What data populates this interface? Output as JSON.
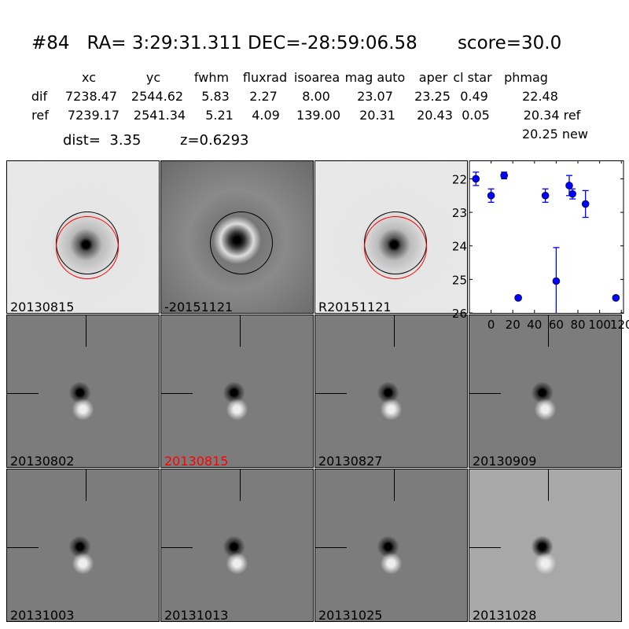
{
  "header": {
    "title": "#84   RA= 3:29:31.311 DEC=-28:59:06.58       score=30.0",
    "columns": [
      "xc",
      "yc",
      "fwhm",
      "fluxrad",
      "isoarea",
      "mag auto",
      "aper",
      "cl star",
      "phmag"
    ],
    "dif": {
      "label": "dif",
      "values": [
        "7238.47",
        "2544.62",
        "5.83",
        "2.27",
        "8.00",
        "23.07",
        "23.25",
        "0.49",
        "22.48"
      ]
    },
    "ref": {
      "label": "ref",
      "values": [
        "7239.17",
        "2541.34",
        "5.21",
        "4.09",
        "139.00",
        "20.31",
        "20.43",
        "0.05",
        "20.34 ref"
      ]
    },
    "new_phmag": "20.25 new",
    "dist": "dist=  3.35",
    "z": "z=0.6293"
  },
  "top_panels": [
    {
      "label": "20130815",
      "bg": "#e6e6e6",
      "circles": [
        "#000",
        "#f00"
      ]
    },
    {
      "label": "-20151121",
      "bg": "#8a8a8a",
      "circles": [
        "#000"
      ]
    },
    {
      "label": "R20151121",
      "bg": "#e6e6e6",
      "circles": [
        "#000",
        "#f00"
      ]
    }
  ],
  "stamps": [
    {
      "label": "20130802",
      "color": "#000"
    },
    {
      "label": "20130815",
      "color": "#f00"
    },
    {
      "label": "20130827",
      "color": "#000"
    },
    {
      "label": "20130909",
      "color": "#000"
    },
    {
      "label": "20131003",
      "color": "#000"
    },
    {
      "label": "20131013",
      "color": "#000"
    },
    {
      "label": "20131025",
      "color": "#000"
    },
    {
      "label": "20131028",
      "color": "#000"
    }
  ],
  "chart_data": {
    "type": "scatter",
    "marker_color": "#0000ff",
    "xlim": [
      -20,
      122
    ],
    "ylim": [
      26,
      21.45
    ],
    "y_inverted": true,
    "xticks": [
      "0",
      "20",
      "40",
      "60",
      "80",
      "100",
      "120"
    ],
    "yticks": [
      "22",
      "23",
      "24",
      "25",
      "26"
    ],
    "x": [
      -14,
      0,
      12,
      25,
      50,
      60,
      72,
      75,
      87,
      115
    ],
    "y": [
      22.0,
      22.5,
      21.9,
      25.55,
      22.5,
      25.05,
      22.2,
      22.45,
      22.75,
      25.55
    ],
    "yerr": [
      0.2,
      0.2,
      0.1,
      0.05,
      0.2,
      1.0,
      0.3,
      0.15,
      0.4,
      0.05
    ]
  }
}
